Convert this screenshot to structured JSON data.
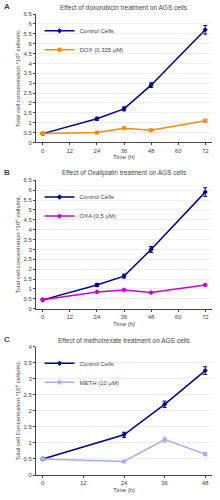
{
  "chart_data": [
    {
      "type": "line",
      "title": "Effect of doxorubicin treatment on AGS cells",
      "xlabel": "Time (h)",
      "ylabel": "Total cell concentration *10⁶ cells/mL",
      "annotations": [
        "A"
      ],
      "x": [
        0,
        24,
        36,
        48,
        72
      ],
      "xlim": [
        -3,
        75
      ],
      "xticks": [
        0,
        12,
        24,
        36,
        48,
        60,
        72
      ],
      "ylim": [
        0,
        6.5
      ],
      "yticks": [
        0,
        0.5,
        1,
        1.5,
        2,
        2.5,
        3,
        3.5,
        4,
        4.5,
        5,
        5.5,
        6,
        6.5
      ],
      "grid": "y",
      "legend": "upper left",
      "line_style": "solid",
      "series": [
        {
          "name": "Control Cells",
          "color": "#00008B",
          "marker": "diamond",
          "values": [
            0.45,
            1.2,
            1.7,
            2.9,
            5.7
          ],
          "yerr": [
            0.05,
            0.08,
            0.1,
            0.12,
            0.22
          ]
        },
        {
          "name": "DOX (0.325 μM)",
          "color": "#FF8C00",
          "marker": "square",
          "values": [
            0.45,
            0.5,
            0.72,
            0.62,
            1.1
          ],
          "yerr": [
            0.04,
            0.04,
            0.05,
            0.05,
            0.06
          ]
        }
      ]
    },
    {
      "type": "line",
      "title": "Effect of Oxaliplatin treatment on AGS cells",
      "xlabel": "Time (h)",
      "ylabel": "Total cell concentration *10⁶ cells/mL",
      "annotations": [
        "B"
      ],
      "x": [
        0,
        24,
        36,
        48,
        72
      ],
      "xlim": [
        -3,
        75
      ],
      "xticks": [
        0,
        12,
        24,
        36,
        48,
        60,
        72
      ],
      "ylim": [
        0,
        6.5
      ],
      "yticks": [
        0,
        0.5,
        1,
        1.5,
        2,
        2.5,
        3,
        3.5,
        4,
        4.5,
        5,
        5.5,
        6,
        6.5
      ],
      "grid": "y",
      "legend": "upper left",
      "line_style": "solid",
      "series": [
        {
          "name": "Control Cells",
          "color": "#00008B",
          "marker": "diamond",
          "values": [
            0.45,
            1.2,
            1.65,
            3.0,
            5.9
          ],
          "yerr": [
            0.05,
            0.08,
            0.1,
            0.15,
            0.22
          ]
        },
        {
          "name": "OXA (0.5 μM)",
          "color": "#CC00CC",
          "marker": "diamond",
          "values": [
            0.45,
            0.85,
            0.95,
            0.82,
            1.2
          ],
          "yerr": [
            0.04,
            0.04,
            0.05,
            0.04,
            0.06
          ]
        }
      ]
    },
    {
      "type": "line",
      "title": "Effect of methotrexate treatment on AGS cells",
      "xlabel": "Time (h)",
      "ylabel": "Total cell Concentration *10⁶ cells/mL",
      "annotations": [
        "C"
      ],
      "x": [
        0,
        24,
        36,
        48
      ],
      "xlim": [
        -2,
        50
      ],
      "xticks": [
        0,
        12,
        24,
        36,
        48
      ],
      "ylim": [
        0,
        4
      ],
      "yticks": [
        0,
        0.5,
        1,
        1.5,
        2,
        2.5,
        3,
        3.5,
        4
      ],
      "grid": "y",
      "legend": "upper left",
      "line_style": "solid",
      "series": [
        {
          "name": "Control Cells",
          "color": "#00008B",
          "marker": "diamond",
          "values": [
            0.5,
            1.25,
            2.2,
            3.25
          ],
          "yerr": [
            0.05,
            0.08,
            0.1,
            0.12
          ]
        },
        {
          "name": "METH (10 μM)",
          "color": "#AAAAEE",
          "marker": "diamond",
          "values": [
            0.5,
            0.42,
            1.1,
            0.65
          ],
          "yerr": [
            0.04,
            0.04,
            0.08,
            0.05
          ]
        }
      ]
    }
  ]
}
